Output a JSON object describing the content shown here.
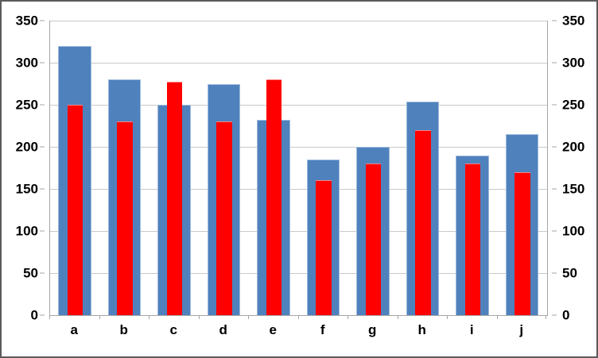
{
  "chart_data": {
    "type": "bar",
    "title": "",
    "xlabel": "",
    "ylabel": "",
    "categories": [
      "a",
      "b",
      "c",
      "d",
      "e",
      "f",
      "g",
      "h",
      "i",
      "j"
    ],
    "series": [
      {
        "name": "blue-series",
        "color": "#4F81BD",
        "values": [
          320,
          280,
          250,
          275,
          232,
          185,
          200,
          254,
          190,
          215
        ]
      },
      {
        "name": "red-series",
        "color": "#FF0000",
        "values": [
          250,
          230,
          277,
          230,
          280,
          160,
          180,
          220,
          180,
          170
        ]
      }
    ],
    "ylim": [
      0,
      350
    ],
    "yticks": [
      0,
      50,
      100,
      150,
      200,
      250,
      300,
      350
    ],
    "ytick_labels": [
      "0",
      "50",
      "100",
      "150",
      "200",
      "250",
      "300",
      "350"
    ],
    "grid": "horizontal",
    "legend": "none",
    "y_axis_sides": "both",
    "colors": {
      "gridline": "#C9C9C9",
      "axis": "#A6A6A6",
      "text": "#000000",
      "background": "#FFFFFF",
      "frame_border": "#5B5B5B"
    }
  }
}
